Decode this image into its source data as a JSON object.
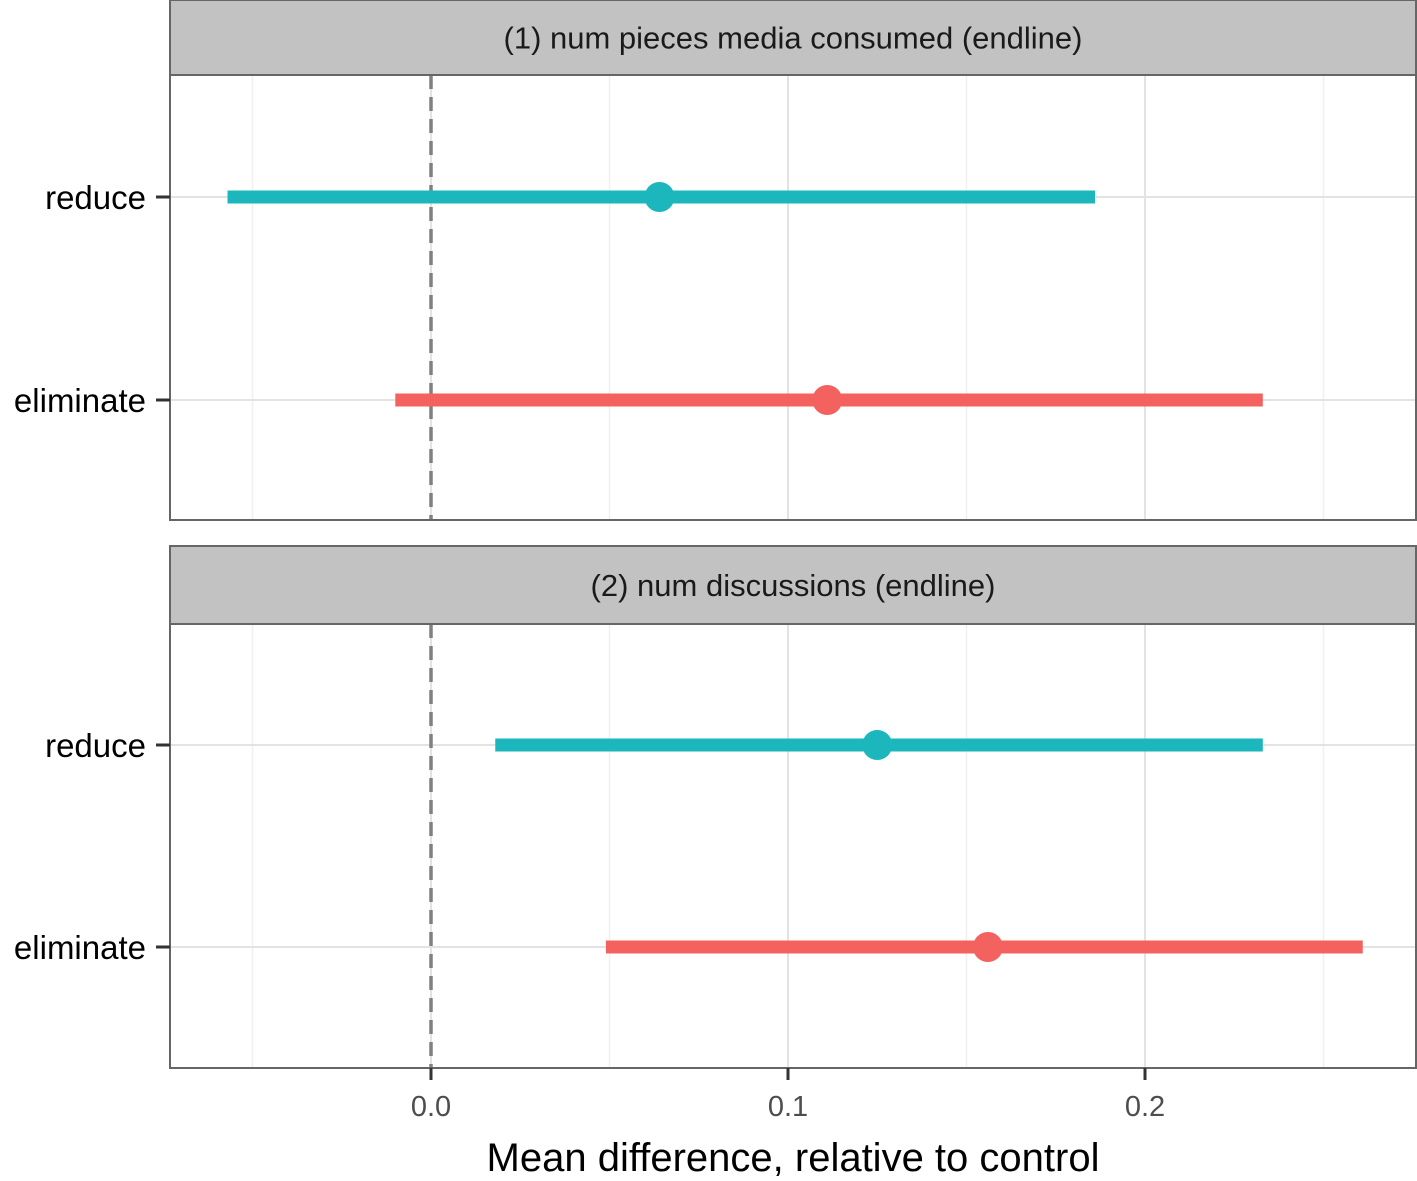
{
  "chart_data": {
    "type": "scatter",
    "subtype": "point-range facets",
    "xlabel": "Mean difference, relative to control",
    "xlim": [
      -0.072,
      0.26
    ],
    "x_ticks": [
      0.0,
      0.1,
      0.2
    ],
    "x_tick_labels": [
      "0.0",
      "0.1",
      "0.2"
    ],
    "x_minor_gridlines": [
      -0.05,
      0.05,
      0.15,
      0.25
    ],
    "reference_line": {
      "x": 0.0,
      "style": "dashed",
      "color": "#808080"
    },
    "categories": [
      "reduce",
      "eliminate"
    ],
    "category_colors": {
      "reduce": "#1bb7bc",
      "eliminate": "#f4625f"
    },
    "grid": true,
    "legend": "none",
    "facets": [
      {
        "title": "(1) num pieces media consumed (endline)",
        "series": [
          {
            "category": "reduce",
            "estimate": 0.064,
            "ci_low": -0.057,
            "ci_high": 0.186
          },
          {
            "category": "eliminate",
            "estimate": 0.111,
            "ci_low": -0.01,
            "ci_high": 0.233
          }
        ]
      },
      {
        "title": "(2) num discussions (endline)",
        "series": [
          {
            "category": "reduce",
            "estimate": 0.125,
            "ci_low": 0.018,
            "ci_high": 0.233
          },
          {
            "category": "eliminate",
            "estimate": 0.156,
            "ci_low": 0.049,
            "ci_high": 0.261
          }
        ]
      }
    ]
  }
}
